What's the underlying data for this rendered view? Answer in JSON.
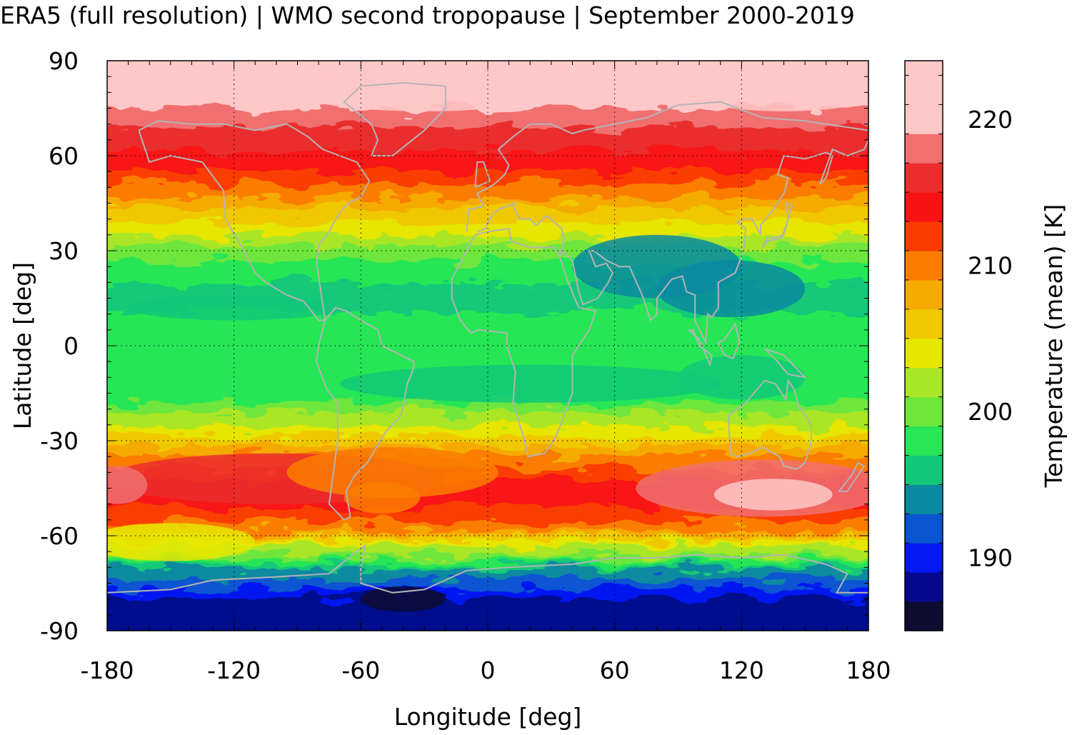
{
  "chart_data": {
    "type": "heatmap",
    "title": "ERA5 (full resolution) | WMO second tropopause | September 2000-2019",
    "xlabel": "Longitude [deg]",
    "ylabel": "Latitude [deg]",
    "xlim": [
      -180,
      180
    ],
    "ylim": [
      -90,
      90
    ],
    "xticks": [
      -180,
      -120,
      -60,
      0,
      60,
      120,
      180
    ],
    "yticks": [
      90,
      60,
      30,
      0,
      -30,
      -60,
      -90
    ],
    "grid": true,
    "colorbar": {
      "label": "Temperature (mean) [K]",
      "ticks": [
        190,
        200,
        210,
        220
      ],
      "range": [
        185,
        224
      ],
      "levels": [
        {
          "from": 185,
          "to": 187,
          "color": "#0c0c30"
        },
        {
          "from": 187,
          "to": 189,
          "color": "#050a8c"
        },
        {
          "from": 189,
          "to": 191,
          "color": "#0418f0"
        },
        {
          "from": 191,
          "to": 193,
          "color": "#0a55d2"
        },
        {
          "from": 193,
          "to": 195,
          "color": "#0a8aa0"
        },
        {
          "from": 195,
          "to": 197,
          "color": "#12c878"
        },
        {
          "from": 197,
          "to": 199,
          "color": "#28e655"
        },
        {
          "from": 199,
          "to": 201,
          "color": "#6ee63c"
        },
        {
          "from": 201,
          "to": 203,
          "color": "#aae628"
        },
        {
          "from": 203,
          "to": 205,
          "color": "#e6e600"
        },
        {
          "from": 205,
          "to": 207,
          "color": "#f0c800"
        },
        {
          "from": 207,
          "to": 209,
          "color": "#f5aa00"
        },
        {
          "from": 209,
          "to": 211,
          "color": "#fa7d00"
        },
        {
          "from": 211,
          "to": 213,
          "color": "#fa3c00"
        },
        {
          "from": 213,
          "to": 215,
          "color": "#f81414"
        },
        {
          "from": 215,
          "to": 217,
          "color": "#ea2d2d"
        },
        {
          "from": 217,
          "to": 219,
          "color": "#f07070"
        },
        {
          "from": 219,
          "to": 224,
          "color": "#ffc8c8"
        }
      ]
    },
    "zonal_mean_temperature": [
      {
        "lat": 90,
        "value": 220
      },
      {
        "lat": 75,
        "value": 219
      },
      {
        "lat": 65,
        "value": 216
      },
      {
        "lat": 55,
        "value": 213
      },
      {
        "lat": 45,
        "value": 208
      },
      {
        "lat": 35,
        "value": 203
      },
      {
        "lat": 25,
        "value": 198
      },
      {
        "lat": 15,
        "value": 196
      },
      {
        "lat": 5,
        "value": 198
      },
      {
        "lat": -5,
        "value": 198
      },
      {
        "lat": -15,
        "value": 197
      },
      {
        "lat": -25,
        "value": 203
      },
      {
        "lat": -35,
        "value": 209
      },
      {
        "lat": -45,
        "value": 215
      },
      {
        "lat": -55,
        "value": 212
      },
      {
        "lat": -62,
        "value": 205
      },
      {
        "lat": -68,
        "value": 198
      },
      {
        "lat": -74,
        "value": 192
      },
      {
        "lat": -80,
        "value": 189
      },
      {
        "lat": -86,
        "value": 188
      },
      {
        "lat": -90,
        "value": 188
      }
    ]
  }
}
